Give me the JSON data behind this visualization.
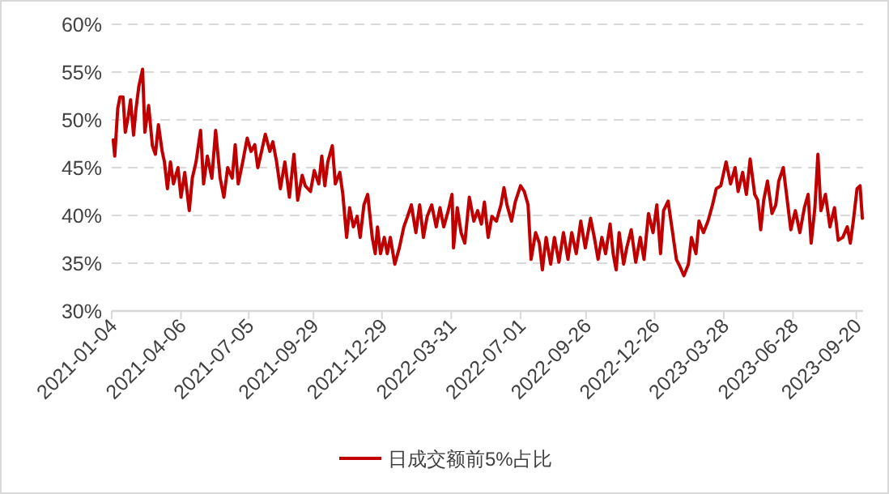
{
  "chart_data": {
    "type": "line",
    "xlim": [
      "2021-01-04",
      "2023-09-29"
    ],
    "ylim": [
      30,
      60
    ],
    "yticks": [
      {
        "value": 30,
        "label": "30%"
      },
      {
        "value": 35,
        "label": "35%"
      },
      {
        "value": 40,
        "label": "40%"
      },
      {
        "value": 45,
        "label": "45%"
      },
      {
        "value": 50,
        "label": "50%"
      },
      {
        "value": 55,
        "label": "55%"
      },
      {
        "value": 60,
        "label": "60%"
      }
    ],
    "xticks": [
      "2021-01-04",
      "2021-04-06",
      "2021-07-05",
      "2021-09-29",
      "2021-12-29",
      "2022-03-31",
      "2022-07-01",
      "2022-09-26",
      "2022-12-26",
      "2023-03-28",
      "2023-06-28",
      "2023-09-20"
    ],
    "grid": "y",
    "legend": "bottom",
    "x": [
      "2021-01-06",
      "2021-01-08",
      "2021-01-12",
      "2021-01-15",
      "2021-01-19",
      "2021-01-22",
      "2021-01-26",
      "2021-01-29",
      "2021-02-02",
      "2021-02-05",
      "2021-02-09",
      "2021-02-14",
      "2021-02-17",
      "2021-02-22",
      "2021-02-27",
      "2021-03-03",
      "2021-03-07",
      "2021-03-12",
      "2021-03-15",
      "2021-03-19",
      "2021-03-23",
      "2021-03-27",
      "2021-04-02",
      "2021-04-06",
      "2021-04-11",
      "2021-04-17",
      "2021-04-21",
      "2021-04-26",
      "2021-05-02",
      "2021-05-06",
      "2021-05-11",
      "2021-05-17",
      "2021-05-22",
      "2021-05-28",
      "2021-06-02",
      "2021-06-07",
      "2021-06-13",
      "2021-06-17",
      "2021-06-21",
      "2021-06-27",
      "2021-07-03",
      "2021-07-08",
      "2021-07-13",
      "2021-07-17",
      "2021-07-22",
      "2021-07-27",
      "2021-08-02",
      "2021-08-06",
      "2021-08-11",
      "2021-08-16",
      "2021-08-22",
      "2021-08-28",
      "2021-09-03",
      "2021-09-08",
      "2021-09-14",
      "2021-09-18",
      "2021-09-25",
      "2021-09-30",
      "2021-10-06",
      "2021-10-10",
      "2021-10-14",
      "2021-10-18",
      "2021-10-24",
      "2021-10-28",
      "2021-11-03",
      "2021-11-07",
      "2021-11-12",
      "2021-11-16",
      "2021-11-21",
      "2021-11-26",
      "2021-11-30",
      "2021-12-05",
      "2021-12-10",
      "2021-12-16",
      "2021-12-20",
      "2021-12-23",
      "2021-12-27",
      "2022-01-01",
      "2022-01-05",
      "2022-01-09",
      "2022-01-15",
      "2022-01-21",
      "2022-01-27",
      "2022-02-01",
      "2022-02-06",
      "2022-02-12",
      "2022-02-17",
      "2022-02-22",
      "2022-02-27",
      "2022-03-05",
      "2022-03-11",
      "2022-03-16",
      "2022-03-21",
      "2022-03-27",
      "2022-04-01",
      "2022-04-03",
      "2022-04-08",
      "2022-04-13",
      "2022-04-18",
      "2022-04-24",
      "2022-04-30",
      "2022-05-05",
      "2022-05-10",
      "2022-05-14",
      "2022-05-19",
      "2022-05-24",
      "2022-05-30",
      "2022-06-05",
      "2022-06-09",
      "2022-06-13",
      "2022-06-19",
      "2022-06-24",
      "2022-07-01",
      "2022-07-06",
      "2022-07-11",
      "2022-07-15",
      "2022-07-21",
      "2022-07-26",
      "2022-07-30",
      "2022-08-04",
      "2022-08-10",
      "2022-08-15",
      "2022-08-21",
      "2022-08-27",
      "2022-09-02",
      "2022-09-07",
      "2022-09-13",
      "2022-09-19",
      "2022-09-25",
      "2022-10-02",
      "2022-10-07",
      "2022-10-12",
      "2022-10-17",
      "2022-10-22",
      "2022-10-28",
      "2022-11-01",
      "2022-11-05",
      "2022-11-09",
      "2022-11-15",
      "2022-11-19",
      "2022-11-25",
      "2022-12-01",
      "2022-12-07",
      "2022-12-12",
      "2022-12-18",
      "2022-12-24",
      "2022-12-29",
      "2023-01-03",
      "2023-01-07",
      "2023-01-13",
      "2023-01-19",
      "2023-01-24",
      "2023-01-29",
      "2023-02-03",
      "2023-02-09",
      "2023-02-13",
      "2023-02-19",
      "2023-02-23",
      "2023-03-01",
      "2023-03-07",
      "2023-03-13",
      "2023-03-18",
      "2023-03-24",
      "2023-03-31",
      "2023-04-06",
      "2023-04-12",
      "2023-04-16",
      "2023-04-22",
      "2023-04-27",
      "2023-05-02",
      "2023-05-08",
      "2023-05-12",
      "2023-05-16",
      "2023-05-20",
      "2023-05-25",
      "2023-05-31",
      "2023-06-05",
      "2023-06-09",
      "2023-06-15",
      "2023-06-21",
      "2023-06-25",
      "2023-07-01",
      "2023-07-07",
      "2023-07-13",
      "2023-07-18",
      "2023-07-22",
      "2023-07-27",
      "2023-07-31",
      "2023-08-04",
      "2023-08-10",
      "2023-08-16",
      "2023-08-22",
      "2023-08-27",
      "2023-09-02",
      "2023-09-08",
      "2023-09-12",
      "2023-09-16",
      "2023-09-21",
      "2023-09-25",
      "2023-09-28"
    ],
    "series": [
      {
        "name": "日成交额前5%占比",
        "color": "#c00000",
        "values": [
          47.9,
          46.2,
          51.2,
          52.4,
          52.4,
          48.7,
          50.4,
          52.1,
          48.4,
          51,
          53.5,
          55.3,
          48.7,
          51.5,
          47.3,
          46.4,
          49.5,
          46.7,
          45.6,
          42.8,
          45.6,
          43.3,
          45,
          41.9,
          44.5,
          40.5,
          43.9,
          45.6,
          48.9,
          43.3,
          46.2,
          43.9,
          48.9,
          43.9,
          41.9,
          45,
          43.9,
          47.4,
          43.3,
          45.6,
          48.1,
          46.7,
          47.4,
          45,
          46.7,
          48.5,
          46.7,
          47.7,
          45.6,
          42.8,
          45.6,
          41.9,
          46.4,
          41.6,
          44.2,
          43.1,
          42.5,
          44.7,
          43.3,
          46.2,
          43.1,
          45.6,
          47.3,
          43.3,
          44.5,
          42.2,
          37.7,
          40.8,
          38.8,
          39.9,
          37.7,
          41.1,
          42.2,
          37.7,
          36,
          38.8,
          36,
          37.7,
          36,
          37.7,
          34.9,
          36.6,
          38.8,
          39.9,
          41.1,
          38.2,
          41.1,
          37.7,
          39.9,
          41.1,
          38.8,
          40.8,
          38.8,
          40.5,
          42.2,
          36.6,
          40.8,
          38.2,
          37.1,
          41.9,
          39.4,
          40.5,
          39.1,
          41.4,
          37.7,
          39.9,
          39.4,
          41.1,
          42.9,
          41.1,
          39.4,
          41.4,
          43.1,
          42.5,
          41.1,
          35.4,
          38.2,
          37.1,
          34.3,
          37.7,
          34.9,
          37.7,
          35.1,
          38.2,
          35.4,
          38.2,
          36,
          39.4,
          36.6,
          39.7,
          37.7,
          35.4,
          37.7,
          36,
          39.1,
          36,
          34.3,
          38.2,
          34.9,
          36.6,
          38.5,
          35.1,
          37.7,
          35.4,
          40.2,
          38.2,
          41.1,
          36,
          40.5,
          41.5,
          38.2,
          35.4,
          34.6,
          33.7,
          34.9,
          37.7,
          36,
          39.4,
          38.2,
          39.4,
          41.1,
          42.8,
          43.1,
          45.6,
          43.3,
          45,
          42.5,
          44.5,
          42.2,
          45.9,
          42.2,
          41.6,
          38.5,
          41.6,
          43.6,
          40.2,
          41.1,
          43.6,
          45,
          41.1,
          38.5,
          40.5,
          38.2,
          40.8,
          42.2,
          37.1,
          40.8,
          46.4,
          40.5,
          42.2,
          38.8,
          40.8,
          37.4,
          37.7,
          38.8,
          37.1,
          39.4,
          42.8,
          43.1,
          39.7
        ]
      }
    ]
  }
}
